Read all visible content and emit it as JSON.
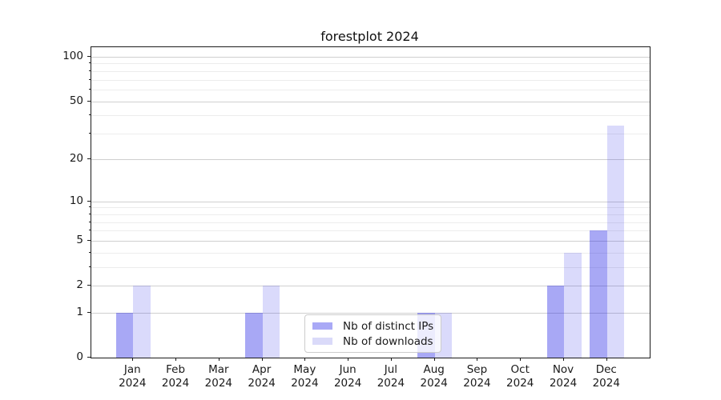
{
  "chart_data": {
    "type": "bar",
    "title": "forestplot 2024",
    "categories": [
      "Jan",
      "Feb",
      "Mar",
      "Apr",
      "May",
      "Jun",
      "Jul",
      "Aug",
      "Sep",
      "Oct",
      "Nov",
      "Dec"
    ],
    "category_year": "2024",
    "series": [
      {
        "name": "Nb of distinct IPs",
        "color": "#a9a9f6",
        "fill": "rgba(30,30,230,0.39)",
        "values": [
          1,
          0,
          0,
          1,
          0,
          0,
          0,
          1,
          0,
          0,
          2,
          6
        ]
      },
      {
        "name": "Nb of downloads",
        "color": "#dadaf9",
        "fill": "rgba(30,30,230,0.165)",
        "values": [
          2,
          0,
          0,
          2,
          0,
          0,
          0,
          1,
          0,
          0,
          4,
          34
        ]
      }
    ],
    "y_scale": "log1p",
    "y_ticks": [
      0,
      1,
      2,
      5,
      10,
      20,
      50,
      100
    ],
    "y_minor_ticks": [
      3,
      4,
      6,
      7,
      8,
      9,
      30,
      40,
      60,
      70,
      80,
      90
    ],
    "ylim": [
      0,
      116
    ],
    "xlabel": "",
    "ylabel": "",
    "grid": true,
    "legend_position": "lower center",
    "colors": {
      "grid_major": "#cfcfcf",
      "grid_minor": "#ececec",
      "axis": "#1a1a1a",
      "background": "#ffffff"
    }
  }
}
